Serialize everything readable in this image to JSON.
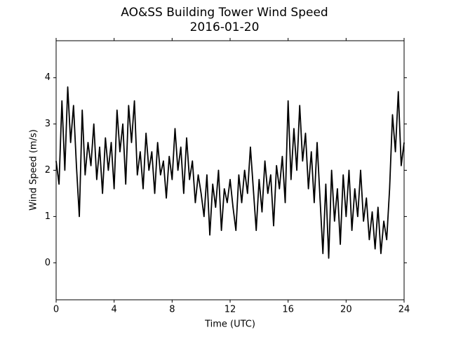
{
  "chart_data": {
    "type": "line",
    "title": [
      "AO&SS Building Tower Wind Speed",
      "2016-01-20"
    ],
    "xlabel": "Time (UTC)",
    "ylabel": "Wind Speed (m/s)",
    "xlim": [
      0,
      24
    ],
    "xticks": [
      0,
      4,
      8,
      12,
      16,
      20,
      24
    ],
    "ylim": [
      -0.8,
      4.8
    ],
    "yticks": [
      0,
      1,
      2,
      3,
      4
    ],
    "grid": false,
    "x": [
      0,
      0.2,
      0.4,
      0.6,
      0.8,
      1,
      1.2,
      1.4,
      1.6,
      1.8,
      2,
      2.2,
      2.4,
      2.6,
      2.8,
      3,
      3.2,
      3.4,
      3.6,
      3.8,
      4,
      4.2,
      4.4,
      4.6,
      4.8,
      5,
      5.2,
      5.4,
      5.6,
      5.8,
      6,
      6.2,
      6.4,
      6.6,
      6.8,
      7,
      7.2,
      7.4,
      7.6,
      7.8,
      8,
      8.2,
      8.4,
      8.6,
      8.8,
      9,
      9.2,
      9.4,
      9.6,
      9.8,
      10,
      10.2,
      10.4,
      10.6,
      10.8,
      11,
      11.2,
      11.4,
      11.6,
      11.8,
      12,
      12.2,
      12.4,
      12.6,
      12.8,
      13,
      13.2,
      13.4,
      13.6,
      13.8,
      14,
      14.2,
      14.4,
      14.6,
      14.8,
      15,
      15.2,
      15.4,
      15.6,
      15.8,
      16,
      16.2,
      16.4,
      16.6,
      16.8,
      17,
      17.2,
      17.4,
      17.6,
      17.8,
      18,
      18.2,
      18.4,
      18.6,
      18.8,
      19,
      19.2,
      19.4,
      19.6,
      19.8,
      20,
      20.2,
      20.4,
      20.6,
      20.8,
      21,
      21.2,
      21.4,
      21.6,
      21.8,
      22,
      22.2,
      22.4,
      22.6,
      22.8,
      23,
      23.2,
      23.4,
      23.6,
      23.8,
      24
    ],
    "series": [
      {
        "name": "Wind Speed",
        "color": "#000000",
        "values": [
          2.2,
          1.7,
          3.5,
          2.0,
          3.8,
          2.6,
          3.4,
          2.1,
          1.0,
          3.3,
          1.9,
          2.6,
          2.1,
          3.0,
          1.8,
          2.5,
          1.5,
          2.7,
          2.0,
          2.6,
          1.6,
          3.3,
          2.4,
          3.0,
          1.7,
          3.4,
          2.6,
          3.5,
          1.9,
          2.4,
          1.6,
          2.8,
          2.0,
          2.4,
          1.5,
          2.6,
          1.9,
          2.2,
          1.4,
          2.3,
          1.8,
          2.9,
          2.0,
          2.5,
          1.5,
          2.7,
          1.8,
          2.2,
          1.3,
          1.9,
          1.5,
          1.0,
          1.9,
          0.6,
          1.7,
          1.2,
          2.0,
          0.7,
          1.6,
          1.3,
          1.8,
          1.2,
          0.7,
          1.9,
          1.3,
          2.0,
          1.5,
          2.5,
          1.6,
          0.7,
          1.8,
          1.1,
          2.2,
          1.5,
          1.9,
          0.8,
          2.1,
          1.6,
          2.3,
          1.3,
          3.5,
          1.8,
          2.9,
          2.0,
          3.4,
          2.2,
          2.8,
          1.6,
          2.4,
          1.3,
          2.6,
          1.4,
          0.2,
          1.7,
          0.1,
          2.0,
          0.9,
          1.6,
          0.4,
          1.9,
          1.0,
          2.0,
          0.7,
          1.6,
          1.0,
          2.0,
          0.9,
          1.4,
          0.5,
          1.1,
          0.3,
          1.2,
          0.2,
          0.9,
          0.5,
          1.6,
          3.2,
          2.4,
          3.7,
          2.1,
          2.6
        ]
      }
    ]
  }
}
